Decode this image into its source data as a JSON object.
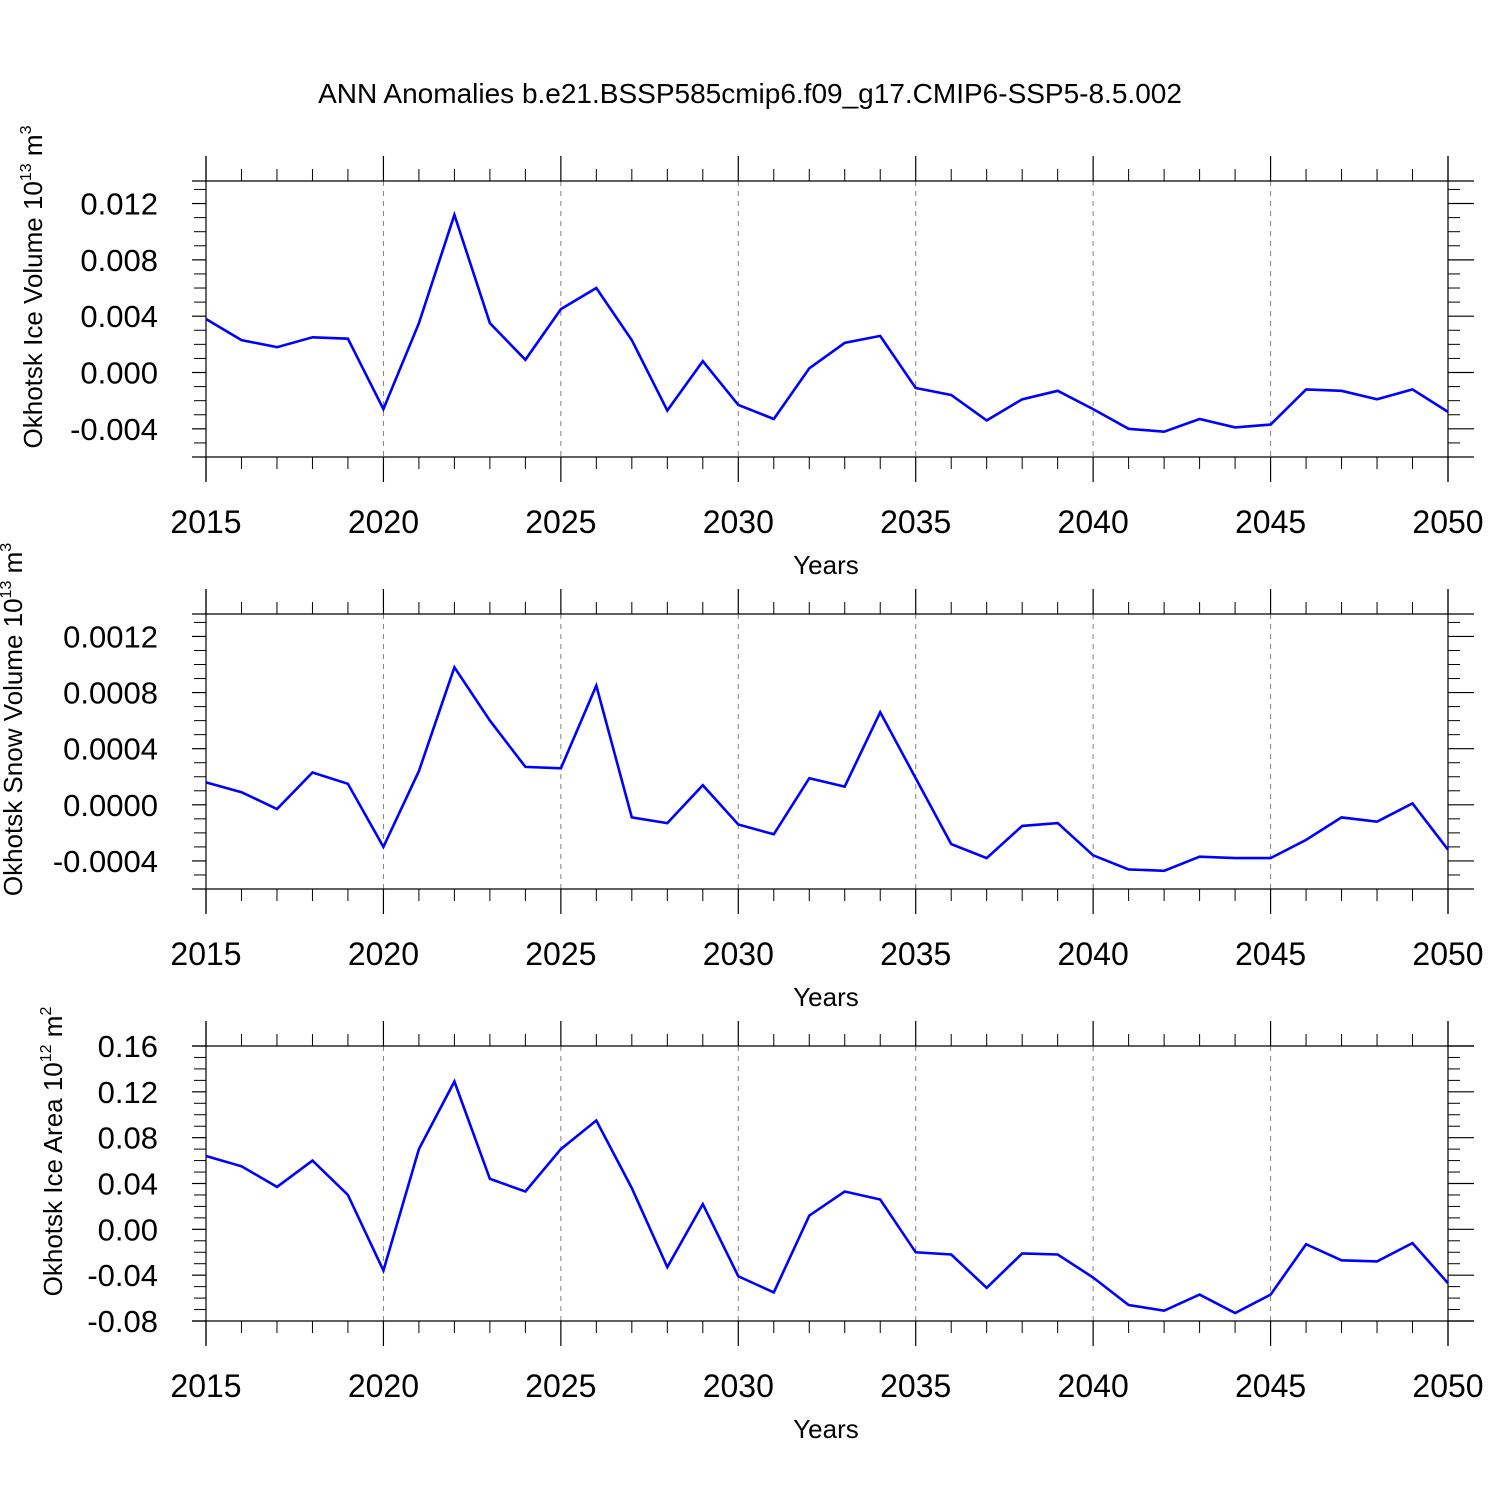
{
  "title": "ANN Anomalies b.e21.BSSP585cmip6.f09_g17.CMIP6-SSP5-8.5.002",
  "colors": {
    "line": "#0000ff",
    "axis": "#000000",
    "grid": "#808080"
  },
  "chart_data": [
    {
      "type": "line",
      "ylabel": "Okhotsk Ice Volume 10",
      "ylabel_exp": "13",
      "ylabel_unit": "m",
      "ylabel_unit_exp": "3",
      "xlabel": "Years",
      "xlim": [
        2015,
        2050
      ],
      "ylim": [
        -0.006,
        0.0136
      ],
      "xticks": [
        "2015",
        "2020",
        "2025",
        "2030",
        "2035",
        "2040",
        "2045",
        "2050"
      ],
      "yticks": [
        0.012,
        0.008,
        0.004,
        0.0,
        -0.004
      ],
      "ytick_labels": [
        "0.012",
        "0.008",
        "0.004",
        "0.000",
        "-0.004"
      ],
      "x": [
        2015,
        2016,
        2017,
        2018,
        2019,
        2020,
        2021,
        2022,
        2023,
        2024,
        2025,
        2026,
        2027,
        2028,
        2029,
        2030,
        2031,
        2032,
        2033,
        2034,
        2035,
        2036,
        2037,
        2038,
        2039,
        2040,
        2041,
        2042,
        2043,
        2044,
        2045,
        2046,
        2047,
        2048,
        2049,
        2050
      ],
      "values": [
        0.0038,
        0.0023,
        0.0018,
        0.0025,
        0.0024,
        -0.0026,
        0.0035,
        0.0112,
        0.0035,
        0.0009,
        0.0045,
        0.006,
        0.0023,
        -0.0027,
        0.0008,
        -0.0023,
        -0.0033,
        0.0003,
        0.0021,
        0.0026,
        -0.0011,
        -0.0016,
        -0.0034,
        -0.0019,
        -0.0013,
        -0.0026,
        -0.004,
        -0.0042,
        -0.0033,
        -0.0039,
        -0.0037,
        -0.0012,
        -0.0013,
        -0.0019,
        -0.0012,
        -0.0028
      ]
    },
    {
      "type": "line",
      "ylabel": "Okhotsk Snow Volume 10",
      "ylabel_exp": "13",
      "ylabel_unit": "m",
      "ylabel_unit_exp": "3",
      "xlabel": "Years",
      "xlim": [
        2015,
        2050
      ],
      "ylim": [
        -0.0006,
        0.00136
      ],
      "xticks": [
        "2015",
        "2020",
        "2025",
        "2030",
        "2035",
        "2040",
        "2045",
        "2050"
      ],
      "yticks": [
        0.0012,
        0.0008,
        0.0004,
        0.0,
        -0.0004
      ],
      "ytick_labels": [
        "0.0012",
        "0.0008",
        "0.0004",
        "0.0000",
        "-0.0004"
      ],
      "x": [
        2015,
        2016,
        2017,
        2018,
        2019,
        2020,
        2021,
        2022,
        2023,
        2024,
        2025,
        2026,
        2027,
        2028,
        2029,
        2030,
        2031,
        2032,
        2033,
        2034,
        2035,
        2036,
        2037,
        2038,
        2039,
        2040,
        2041,
        2042,
        2043,
        2044,
        2045,
        2046,
        2047,
        2048,
        2049,
        2050
      ],
      "values": [
        0.00016,
        9e-05,
        -3e-05,
        0.00023,
        0.00015,
        -0.0003,
        0.00024,
        0.00098,
        0.0006,
        0.00027,
        0.00026,
        0.00085,
        -9e-05,
        -0.00013,
        0.00014,
        -0.00014,
        -0.00021,
        0.00019,
        0.00013,
        0.00066,
        0.00019,
        -0.00028,
        -0.00038,
        -0.00015,
        -0.00013,
        -0.00036,
        -0.00046,
        -0.00047,
        -0.00037,
        -0.00038,
        -0.00038,
        -0.00025,
        -9e-05,
        -0.00012,
        1e-05,
        -0.00032
      ]
    },
    {
      "type": "line",
      "ylabel": "Okhotsk Ice Area 10",
      "ylabel_exp": "12",
      "ylabel_unit": "m",
      "ylabel_unit_exp": "2",
      "xlabel": "Years",
      "xlim": [
        2015,
        2050
      ],
      "ylim": [
        -0.08,
        0.16
      ],
      "xticks": [
        "2015",
        "2020",
        "2025",
        "2030",
        "2035",
        "2040",
        "2045",
        "2050"
      ],
      "yticks": [
        0.16,
        0.12,
        0.08,
        0.04,
        0.0,
        -0.04,
        -0.08
      ],
      "ytick_labels": [
        "0.16",
        "0.12",
        "0.08",
        "0.04",
        "0.00",
        "-0.04",
        "-0.08"
      ],
      "x": [
        2015,
        2016,
        2017,
        2018,
        2019,
        2020,
        2021,
        2022,
        2023,
        2024,
        2025,
        2026,
        2027,
        2028,
        2029,
        2030,
        2031,
        2032,
        2033,
        2034,
        2035,
        2036,
        2037,
        2038,
        2039,
        2040,
        2041,
        2042,
        2043,
        2044,
        2045,
        2046,
        2047,
        2048,
        2049,
        2050
      ],
      "values": [
        0.064,
        0.055,
        0.037,
        0.06,
        0.03,
        -0.036,
        0.07,
        0.129,
        0.044,
        0.033,
        0.07,
        0.095,
        0.036,
        -0.033,
        0.022,
        -0.041,
        -0.055,
        0.012,
        0.033,
        0.026,
        -0.02,
        -0.022,
        -0.051,
        -0.021,
        -0.022,
        -0.042,
        -0.066,
        -0.071,
        -0.057,
        -0.073,
        -0.057,
        -0.013,
        -0.027,
        -0.028,
        -0.012,
        -0.047
      ]
    }
  ]
}
